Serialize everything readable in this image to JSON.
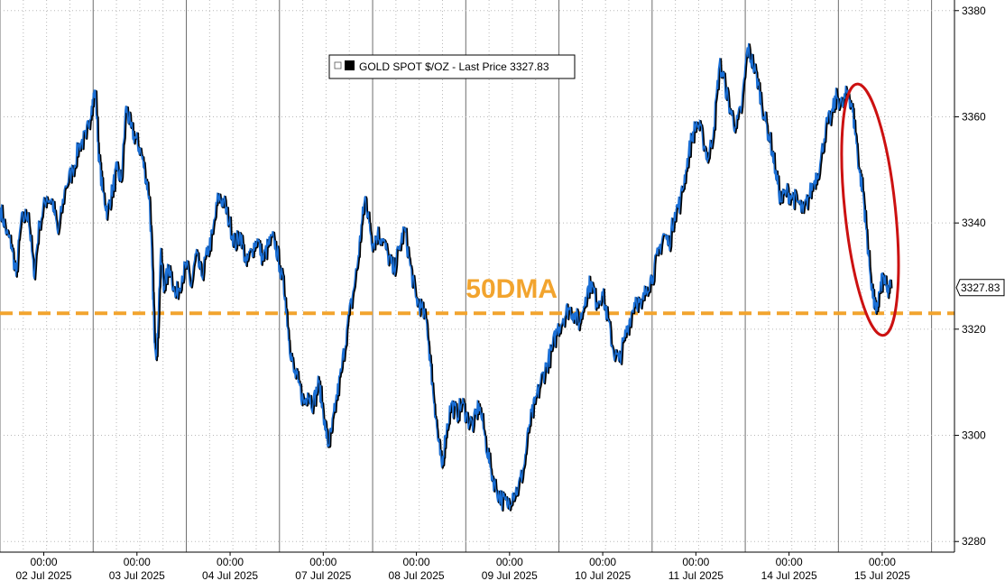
{
  "chart_data": {
    "type": "line",
    "title": "",
    "xlabel": "",
    "ylabel": "",
    "ylim": [
      3278,
      3382
    ],
    "y_ticks": [
      3280,
      3300,
      3320,
      3340,
      3360,
      3380
    ],
    "y_tick_labels": [
      "3280",
      "3300",
      "3320",
      "3340",
      "3360",
      "3380"
    ],
    "x_ticks": [
      {
        "t": 0.5,
        "time": "00:00",
        "date": "02 Jul 2025"
      },
      {
        "t": 1.5,
        "time": "00:00",
        "date": "03 Jul 2025"
      },
      {
        "t": 2.5,
        "time": "00:00",
        "date": "04 Jul 2025"
      },
      {
        "t": 3.5,
        "time": "00:00",
        "date": "07 Jul 2025"
      },
      {
        "t": 4.5,
        "time": "00:00",
        "date": "08 Jul 2025"
      },
      {
        "t": 5.5,
        "time": "00:00",
        "date": "09 Jul 2025"
      },
      {
        "t": 6.5,
        "time": "00:00",
        "date": "10 Jul 2025"
      },
      {
        "t": 7.5,
        "time": "00:00",
        "date": "11 Jul 2025"
      },
      {
        "t": 8.5,
        "time": "00:00",
        "date": "14 Jul 2025"
      },
      {
        "t": 9.5,
        "time": "00:00",
        "date": "15 Jul 2025"
      }
    ],
    "legend": {
      "label": "GOLD SPOT $/OZ - Last Price 3327.83",
      "position": "top-center"
    },
    "last_price_tag": "3327.83",
    "reference_line": {
      "label": "50DMA",
      "value": 3323,
      "color": "#f2a42e"
    },
    "highlight_ellipse_color": "#cc1111",
    "series_colors": {
      "main": "#1a6fd6",
      "shadow": "#000000"
    },
    "series": [
      {
        "name": "GOLD SPOT $/OZ",
        "points": [
          [
            0.0,
            3343
          ],
          [
            0.07,
            3338
          ],
          [
            0.12,
            3336
          ],
          [
            0.17,
            3330
          ],
          [
            0.22,
            3340
          ],
          [
            0.3,
            3342
          ],
          [
            0.36,
            3330
          ],
          [
            0.42,
            3340
          ],
          [
            0.5,
            3345
          ],
          [
            0.56,
            3344
          ],
          [
            0.62,
            3338
          ],
          [
            0.7,
            3347
          ],
          [
            0.78,
            3350
          ],
          [
            0.85,
            3355
          ],
          [
            0.92,
            3356
          ],
          [
            0.98,
            3362
          ],
          [
            1.02,
            3365
          ],
          [
            1.06,
            3352
          ],
          [
            1.1,
            3346
          ],
          [
            1.15,
            3342
          ],
          [
            1.2,
            3346
          ],
          [
            1.25,
            3350
          ],
          [
            1.3,
            3348
          ],
          [
            1.35,
            3362
          ],
          [
            1.4,
            3358
          ],
          [
            1.45,
            3356
          ],
          [
            1.5,
            3354
          ],
          [
            1.55,
            3350
          ],
          [
            1.6,
            3345
          ],
          [
            1.63,
            3332
          ],
          [
            1.65,
            3320
          ],
          [
            1.68,
            3315
          ],
          [
            1.72,
            3334
          ],
          [
            1.76,
            3328
          ],
          [
            1.82,
            3332
          ],
          [
            1.88,
            3326
          ],
          [
            1.95,
            3330
          ],
          [
            2.0,
            3332
          ],
          [
            2.05,
            3328
          ],
          [
            2.1,
            3334
          ],
          [
            2.16,
            3330
          ],
          [
            2.22,
            3334
          ],
          [
            2.28,
            3338
          ],
          [
            2.34,
            3345
          ],
          [
            2.4,
            3344
          ],
          [
            2.46,
            3340
          ],
          [
            2.52,
            3336
          ],
          [
            2.58,
            3338
          ],
          [
            2.64,
            3332
          ],
          [
            2.7,
            3335
          ],
          [
            2.76,
            3337
          ],
          [
            2.82,
            3333
          ],
          [
            2.88,
            3336
          ],
          [
            2.94,
            3337
          ],
          [
            3.0,
            3332
          ],
          [
            3.06,
            3326
          ],
          [
            3.1,
            3318
          ],
          [
            3.15,
            3312
          ],
          [
            3.2,
            3310
          ],
          [
            3.26,
            3306
          ],
          [
            3.3,
            3308
          ],
          [
            3.36,
            3306
          ],
          [
            3.42,
            3310
          ],
          [
            3.48,
            3303
          ],
          [
            3.52,
            3298
          ],
          [
            3.56,
            3301
          ],
          [
            3.6,
            3306
          ],
          [
            3.66,
            3312
          ],
          [
            3.72,
            3320
          ],
          [
            3.78,
            3326
          ],
          [
            3.84,
            3333
          ],
          [
            3.88,
            3340
          ],
          [
            3.92,
            3345
          ],
          [
            3.96,
            3340
          ],
          [
            4.0,
            3336
          ],
          [
            4.05,
            3338
          ],
          [
            4.1,
            3337
          ],
          [
            4.16,
            3334
          ],
          [
            4.22,
            3331
          ],
          [
            4.28,
            3335
          ],
          [
            4.34,
            3339
          ],
          [
            4.4,
            3332
          ],
          [
            4.46,
            3326
          ],
          [
            4.52,
            3324
          ],
          [
            4.58,
            3321
          ],
          [
            4.62,
            3313
          ],
          [
            4.66,
            3306
          ],
          [
            4.7,
            3299
          ],
          [
            4.74,
            3294
          ],
          [
            4.78,
            3300
          ],
          [
            4.84,
            3306
          ],
          [
            4.9,
            3304
          ],
          [
            4.96,
            3306
          ],
          [
            5.02,
            3303
          ],
          [
            5.08,
            3302
          ],
          [
            5.14,
            3306
          ],
          [
            5.2,
            3300
          ],
          [
            5.26,
            3294
          ],
          [
            5.32,
            3290
          ],
          [
            5.38,
            3288
          ],
          [
            5.44,
            3287
          ],
          [
            5.5,
            3289
          ],
          [
            5.56,
            3290
          ],
          [
            5.62,
            3294
          ],
          [
            5.68,
            3302
          ],
          [
            5.74,
            3306
          ],
          [
            5.8,
            3310
          ],
          [
            5.86,
            3313
          ],
          [
            5.92,
            3316
          ],
          [
            5.98,
            3320
          ],
          [
            6.04,
            3322
          ],
          [
            6.1,
            3324
          ],
          [
            6.16,
            3323
          ],
          [
            6.22,
            3321
          ],
          [
            6.28,
            3326
          ],
          [
            6.34,
            3329
          ],
          [
            6.4,
            3325
          ],
          [
            6.46,
            3327
          ],
          [
            6.52,
            3322
          ],
          [
            6.58,
            3316
          ],
          [
            6.64,
            3314
          ],
          [
            6.7,
            3318
          ],
          [
            6.76,
            3322
          ],
          [
            6.82,
            3326
          ],
          [
            6.88,
            3324
          ],
          [
            6.94,
            3328
          ],
          [
            7.0,
            3330
          ],
          [
            7.06,
            3334
          ],
          [
            7.12,
            3338
          ],
          [
            7.18,
            3336
          ],
          [
            7.24,
            3342
          ],
          [
            7.3,
            3344
          ],
          [
            7.36,
            3350
          ],
          [
            7.42,
            3356
          ],
          [
            7.48,
            3359
          ],
          [
            7.54,
            3356
          ],
          [
            7.6,
            3352
          ],
          [
            7.66,
            3358
          ],
          [
            7.72,
            3370
          ],
          [
            7.78,
            3366
          ],
          [
            7.84,
            3361
          ],
          [
            7.9,
            3358
          ],
          [
            7.96,
            3362
          ],
          [
            8.02,
            3373
          ],
          [
            8.08,
            3370
          ],
          [
            8.14,
            3366
          ],
          [
            8.2,
            3360
          ],
          [
            8.26,
            3356
          ],
          [
            8.32,
            3350
          ],
          [
            8.38,
            3344
          ],
          [
            8.44,
            3346
          ],
          [
            8.5,
            3345
          ],
          [
            8.56,
            3344
          ],
          [
            8.62,
            3342
          ],
          [
            8.68,
            3345
          ],
          [
            8.74,
            3348
          ],
          [
            8.8,
            3351
          ],
          [
            8.86,
            3358
          ],
          [
            8.92,
            3360
          ],
          [
            8.98,
            3364
          ],
          [
            9.04,
            3362
          ],
          [
            9.1,
            3365
          ],
          [
            9.14,
            3362
          ],
          [
            9.18,
            3357
          ],
          [
            9.22,
            3350
          ],
          [
            9.26,
            3346
          ],
          [
            9.29,
            3340
          ],
          [
            9.33,
            3332
          ],
          [
            9.37,
            3326
          ],
          [
            9.4,
            3323
          ],
          [
            9.44,
            3327
          ],
          [
            9.48,
            3330
          ],
          [
            9.52,
            3327
          ],
          [
            9.56,
            3327.83
          ]
        ]
      }
    ]
  }
}
